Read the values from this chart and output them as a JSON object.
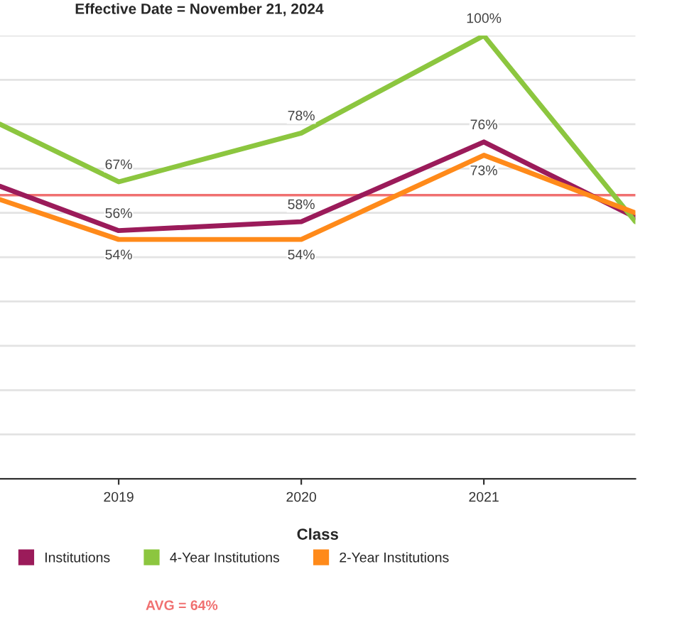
{
  "chart_data": {
    "type": "line",
    "title": "Effective Date = November 21, 2024",
    "xlabel": "Class",
    "x": [
      2018.35,
      2019,
      2020,
      2021,
      2021.83
    ],
    "xlim": [
      2018.35,
      2021.83
    ],
    "xticks": [
      2019,
      2020,
      2021
    ],
    "ylim": [
      0,
      100
    ],
    "yticks": [
      {
        "value": 0,
        "label": null
      },
      {
        "value": 10,
        "label": null
      },
      {
        "value": 20,
        "label": null
      },
      {
        "value": 30,
        "label": null
      },
      {
        "value": 40,
        "label": null
      },
      {
        "value": 50,
        "label": null
      },
      {
        "value": 60,
        "label": null
      },
      {
        "value": 70,
        "label": null
      },
      {
        "value": 80,
        "label": null
      },
      {
        "value": 90,
        "label": null
      },
      {
        "value": 100,
        "label": null
      }
    ],
    "tick_labels": "x",
    "grid": "y",
    "legend": "bottom",
    "marker": "none",
    "line_style": "solid",
    "series": [
      {
        "name": "Institutions",
        "color": "#9b1b5a",
        "values": [
          66,
          56,
          58,
          76,
          59
        ],
        "value_labels": [
          null,
          "56%",
          "58%",
          "76%",
          null
        ]
      },
      {
        "name": "4-Year Institutions",
        "color": "#8cc63f",
        "values": [
          80,
          67,
          78,
          100,
          58
        ],
        "value_labels": [
          null,
          "67%",
          "78%",
          "100%",
          null
        ]
      },
      {
        "name": "2-Year Institutions",
        "color": "#ff8a1a",
        "values": [
          63,
          54,
          54,
          73,
          60
        ],
        "value_labels": [
          null,
          "54%",
          "54%",
          "73%",
          null
        ]
      }
    ],
    "ref_lines": [
      {
        "axis": "y",
        "value": 64,
        "label": "AVG = 64%",
        "color": "#f07070"
      }
    ]
  }
}
